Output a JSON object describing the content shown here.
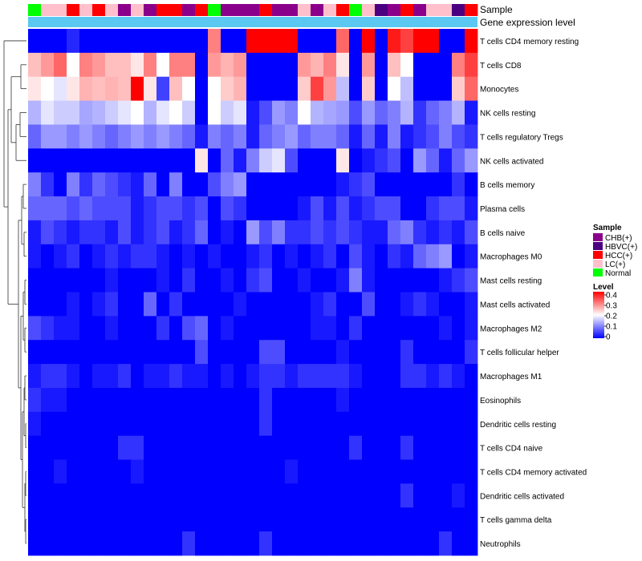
{
  "chart_data": {
    "type": "heatmap",
    "title": "",
    "annotation_labels": {
      "sample": "Sample",
      "expression": "Gene expression level"
    },
    "sample_legend": {
      "title": "Sample",
      "entries": [
        {
          "label": "CHB(+)",
          "color": "#8b008b"
        },
        {
          "label": "HBVC(+)",
          "color": "#4b0082"
        },
        {
          "label": "HCC(+)",
          "color": "#ff0000"
        },
        {
          "label": "LC(+)",
          "color": "#ffc0cb"
        },
        {
          "label": "Normal",
          "color": "#00ff00"
        }
      ]
    },
    "level_legend": {
      "title": "Level",
      "ticks": [
        "0.4",
        "0.3",
        "0.2",
        "0.1",
        "0"
      ],
      "min": 0,
      "max": 0.4,
      "colors": {
        "low": "#0000ff",
        "mid": "#ffffff",
        "high": "#ff0000"
      }
    },
    "expression_bar_color": "#5ac8f0",
    "sample_colors": [
      "#00ff00",
      "#ffc0cb",
      "#ffc0cb",
      "#ff0000",
      "#ffc0cb",
      "#ff0000",
      "#ffc0cb",
      "#8b008b",
      "#ffc0cb",
      "#8b008b",
      "#ff0000",
      "#ff0000",
      "#8b008b",
      "#ff0000",
      "#00ff00",
      "#8b008b",
      "#8b008b",
      "#8b008b",
      "#ff0000",
      "#8b008b",
      "#8b008b",
      "#ffc0cb",
      "#8b008b",
      "#ffc0cb",
      "#ff0000",
      "#00ff00",
      "#ffc0cb",
      "#4b0082",
      "#8b008b",
      "#ff0000",
      "#8b008b",
      "#ffc0cb",
      "#ffc0cb",
      "#4b0082",
      "#ff0000"
    ],
    "rows": [
      "T cells CD4 memory resting",
      "T cells CD8",
      "Monocytes",
      "NK cells resting",
      "T cells regulatory  Tregs",
      "NK cells activated",
      "B cells memory",
      "Plasma cells",
      "B cells naive",
      "Macrophages M0",
      "Mast cells resting",
      "Mast cells activated",
      "Macrophages M2",
      "T cells follicular helper",
      "Macrophages M1",
      "Eosinophils",
      "Dendritic cells resting",
      "T cells CD4 naive",
      "T cells CD4 memory activated",
      "Dendritic cells activated",
      "T cells gamma delta",
      "Neutrophils"
    ],
    "values": [
      [
        0.0,
        0.0,
        0.0,
        0.03,
        0.0,
        0.0,
        0.0,
        0.0,
        0.0,
        0.0,
        0.0,
        0.0,
        0.0,
        0.0,
        0.3,
        0.0,
        0.0,
        0.4,
        0.4,
        0.4,
        0.4,
        0.0,
        0.0,
        0.0,
        0.32,
        0.0,
        0.4,
        0.0,
        0.38,
        0.35,
        0.4,
        0.4,
        0.0,
        0.0,
        0.4
      ],
      [
        0.25,
        0.28,
        0.32,
        0.2,
        0.3,
        0.28,
        0.25,
        0.25,
        0.22,
        0.3,
        0.2,
        0.3,
        0.3,
        0.0,
        0.28,
        0.26,
        0.28,
        0.0,
        0.0,
        0.0,
        0.0,
        0.28,
        0.26,
        0.3,
        0.22,
        0.0,
        0.28,
        0.0,
        0.25,
        0.2,
        0.0,
        0.0,
        0.0,
        0.3,
        0.35
      ],
      [
        0.22,
        0.2,
        0.18,
        0.22,
        0.26,
        0.25,
        0.26,
        0.25,
        0.4,
        0.22,
        0.05,
        0.25,
        0.2,
        0.0,
        0.2,
        0.24,
        0.26,
        0.0,
        0.0,
        0.0,
        0.0,
        0.24,
        0.35,
        0.28,
        0.15,
        0.0,
        0.24,
        0.0,
        0.2,
        0.15,
        0.0,
        0.0,
        0.0,
        0.24,
        0.32
      ],
      [
        0.14,
        0.18,
        0.16,
        0.16,
        0.13,
        0.14,
        0.16,
        0.18,
        0.2,
        0.14,
        0.18,
        0.2,
        0.16,
        0.0,
        0.2,
        0.16,
        0.18,
        0.02,
        0.06,
        0.12,
        0.1,
        0.2,
        0.14,
        0.13,
        0.12,
        0.06,
        0.12,
        0.08,
        0.1,
        0.14,
        0.04,
        0.08,
        0.1,
        0.14,
        0.02
      ],
      [
        0.08,
        0.12,
        0.12,
        0.1,
        0.12,
        0.1,
        0.08,
        0.1,
        0.12,
        0.1,
        0.12,
        0.1,
        0.08,
        0.02,
        0.1,
        0.08,
        0.1,
        0.02,
        0.08,
        0.1,
        0.12,
        0.08,
        0.1,
        0.1,
        0.08,
        0.02,
        0.08,
        0.02,
        0.1,
        0.02,
        0.04,
        0.06,
        0.1,
        0.06,
        0.04
      ],
      [
        0.0,
        0.0,
        0.0,
        0.0,
        0.0,
        0.0,
        0.0,
        0.0,
        0.0,
        0.0,
        0.0,
        0.0,
        0.0,
        0.22,
        0.0,
        0.08,
        0.02,
        0.1,
        0.16,
        0.18,
        0.06,
        0.0,
        0.0,
        0.0,
        0.22,
        0.0,
        0.02,
        0.04,
        0.06,
        0.0,
        0.12,
        0.08,
        0.02,
        0.08,
        0.12
      ],
      [
        0.1,
        0.04,
        0.0,
        0.1,
        0.04,
        0.08,
        0.06,
        0.04,
        0.02,
        0.08,
        0.0,
        0.1,
        0.0,
        0.0,
        0.06,
        0.1,
        0.12,
        0.0,
        0.0,
        0.0,
        0.0,
        0.0,
        0.0,
        0.0,
        0.02,
        0.04,
        0.06,
        0.0,
        0.0,
        0.0,
        0.0,
        0.0,
        0.0,
        0.04,
        0.0
      ],
      [
        0.08,
        0.08,
        0.08,
        0.06,
        0.08,
        0.06,
        0.06,
        0.06,
        0.02,
        0.04,
        0.06,
        0.06,
        0.04,
        0.06,
        0.0,
        0.06,
        0.04,
        0.0,
        0.0,
        0.0,
        0.0,
        0.02,
        0.06,
        0.02,
        0.06,
        0.02,
        0.04,
        0.06,
        0.06,
        0.0,
        0.0,
        0.04,
        0.06,
        0.06,
        0.02
      ],
      [
        0.02,
        0.06,
        0.04,
        0.02,
        0.04,
        0.04,
        0.02,
        0.06,
        0.02,
        0.04,
        0.06,
        0.02,
        0.04,
        0.08,
        0.0,
        0.02,
        0.0,
        0.12,
        0.06,
        0.1,
        0.04,
        0.04,
        0.06,
        0.04,
        0.06,
        0.04,
        0.02,
        0.02,
        0.08,
        0.1,
        0.04,
        0.02,
        0.04,
        0.02,
        0.06
      ],
      [
        0.02,
        0.0,
        0.02,
        0.04,
        0.0,
        0.02,
        0.04,
        0.02,
        0.04,
        0.04,
        0.02,
        0.0,
        0.02,
        0.0,
        0.02,
        0.0,
        0.0,
        0.02,
        0.04,
        0.0,
        0.02,
        0.0,
        0.02,
        0.04,
        0.0,
        0.06,
        0.02,
        0.0,
        0.04,
        0.02,
        0.08,
        0.1,
        0.12,
        0.0,
        0.02
      ],
      [
        0.0,
        0.0,
        0.0,
        0.0,
        0.0,
        0.0,
        0.02,
        0.0,
        0.0,
        0.0,
        0.02,
        0.0,
        0.04,
        0.0,
        0.0,
        0.02,
        0.0,
        0.04,
        0.06,
        0.0,
        0.0,
        0.02,
        0.0,
        0.0,
        0.02,
        0.1,
        0.02,
        0.0,
        0.0,
        0.0,
        0.0,
        0.0,
        0.02,
        0.04,
        0.06
      ],
      [
        0.0,
        0.0,
        0.0,
        0.02,
        0.0,
        0.02,
        0.04,
        0.0,
        0.0,
        0.08,
        0.0,
        0.04,
        0.0,
        0.0,
        0.0,
        0.0,
        0.02,
        0.0,
        0.0,
        0.0,
        0.0,
        0.0,
        0.02,
        0.04,
        0.0,
        0.0,
        0.06,
        0.0,
        0.0,
        0.02,
        0.04,
        0.02,
        0.0,
        0.0,
        0.02
      ],
      [
        0.06,
        0.04,
        0.02,
        0.02,
        0.0,
        0.0,
        0.02,
        0.0,
        0.0,
        0.0,
        0.04,
        0.0,
        0.06,
        0.08,
        0.0,
        0.02,
        0.0,
        0.0,
        0.0,
        0.0,
        0.0,
        0.0,
        0.02,
        0.02,
        0.0,
        0.04,
        0.0,
        0.0,
        0.0,
        0.0,
        0.0,
        0.0,
        0.02,
        0.0,
        0.02
      ],
      [
        0.0,
        0.0,
        0.0,
        0.0,
        0.0,
        0.0,
        0.0,
        0.0,
        0.0,
        0.0,
        0.0,
        0.0,
        0.0,
        0.06,
        0.0,
        0.0,
        0.0,
        0.0,
        0.06,
        0.06,
        0.0,
        0.0,
        0.0,
        0.0,
        0.02,
        0.0,
        0.0,
        0.0,
        0.0,
        0.04,
        0.0,
        0.0,
        0.0,
        0.0,
        0.04
      ],
      [
        0.02,
        0.04,
        0.04,
        0.02,
        0.0,
        0.02,
        0.02,
        0.04,
        0.0,
        0.02,
        0.02,
        0.04,
        0.02,
        0.02,
        0.0,
        0.02,
        0.0,
        0.02,
        0.04,
        0.04,
        0.02,
        0.04,
        0.04,
        0.04,
        0.04,
        0.02,
        0.0,
        0.0,
        0.0,
        0.04,
        0.04,
        0.02,
        0.04,
        0.02,
        0.0
      ],
      [
        0.04,
        0.02,
        0.02,
        0.0,
        0.0,
        0.0,
        0.0,
        0.0,
        0.0,
        0.0,
        0.0,
        0.0,
        0.0,
        0.0,
        0.0,
        0.0,
        0.0,
        0.0,
        0.04,
        0.0,
        0.0,
        0.0,
        0.0,
        0.0,
        0.02,
        0.0,
        0.0,
        0.0,
        0.0,
        0.0,
        0.0,
        0.0,
        0.0,
        0.0,
        0.0
      ],
      [
        0.02,
        0.0,
        0.0,
        0.0,
        0.0,
        0.0,
        0.0,
        0.0,
        0.0,
        0.0,
        0.0,
        0.0,
        0.0,
        0.0,
        0.0,
        0.0,
        0.0,
        0.0,
        0.04,
        0.0,
        0.0,
        0.0,
        0.0,
        0.0,
        0.0,
        0.0,
        0.0,
        0.0,
        0.0,
        0.0,
        0.0,
        0.0,
        0.0,
        0.0,
        0.0
      ],
      [
        0.0,
        0.0,
        0.0,
        0.0,
        0.0,
        0.0,
        0.0,
        0.04,
        0.04,
        0.0,
        0.0,
        0.0,
        0.0,
        0.0,
        0.0,
        0.0,
        0.0,
        0.0,
        0.0,
        0.0,
        0.0,
        0.0,
        0.0,
        0.0,
        0.0,
        0.04,
        0.0,
        0.0,
        0.0,
        0.04,
        0.0,
        0.0,
        0.0,
        0.0,
        0.0
      ],
      [
        0.0,
        0.0,
        0.02,
        0.0,
        0.0,
        0.0,
        0.0,
        0.0,
        0.02,
        0.0,
        0.0,
        0.0,
        0.0,
        0.0,
        0.0,
        0.0,
        0.0,
        0.0,
        0.0,
        0.0,
        0.02,
        0.0,
        0.0,
        0.0,
        0.0,
        0.0,
        0.0,
        0.0,
        0.0,
        0.0,
        0.0,
        0.0,
        0.0,
        0.0,
        0.0
      ],
      [
        0.0,
        0.0,
        0.0,
        0.0,
        0.0,
        0.0,
        0.0,
        0.0,
        0.0,
        0.0,
        0.0,
        0.0,
        0.0,
        0.0,
        0.0,
        0.0,
        0.0,
        0.0,
        0.0,
        0.0,
        0.0,
        0.0,
        0.0,
        0.0,
        0.0,
        0.0,
        0.0,
        0.0,
        0.0,
        0.04,
        0.0,
        0.0,
        0.0,
        0.02,
        0.0
      ],
      [
        0.0,
        0.0,
        0.0,
        0.0,
        0.0,
        0.0,
        0.0,
        0.0,
        0.0,
        0.0,
        0.0,
        0.0,
        0.0,
        0.0,
        0.0,
        0.0,
        0.0,
        0.0,
        0.0,
        0.0,
        0.0,
        0.0,
        0.0,
        0.0,
        0.0,
        0.0,
        0.0,
        0.0,
        0.0,
        0.0,
        0.0,
        0.0,
        0.0,
        0.0,
        0.0
      ],
      [
        0.0,
        0.0,
        0.0,
        0.0,
        0.0,
        0.0,
        0.0,
        0.0,
        0.0,
        0.0,
        0.0,
        0.0,
        0.04,
        0.0,
        0.0,
        0.0,
        0.0,
        0.0,
        0.04,
        0.0,
        0.0,
        0.0,
        0.0,
        0.0,
        0.0,
        0.0,
        0.0,
        0.0,
        0.0,
        0.0,
        0.0,
        0.0,
        0.04,
        0.0,
        0.0
      ]
    ]
  }
}
